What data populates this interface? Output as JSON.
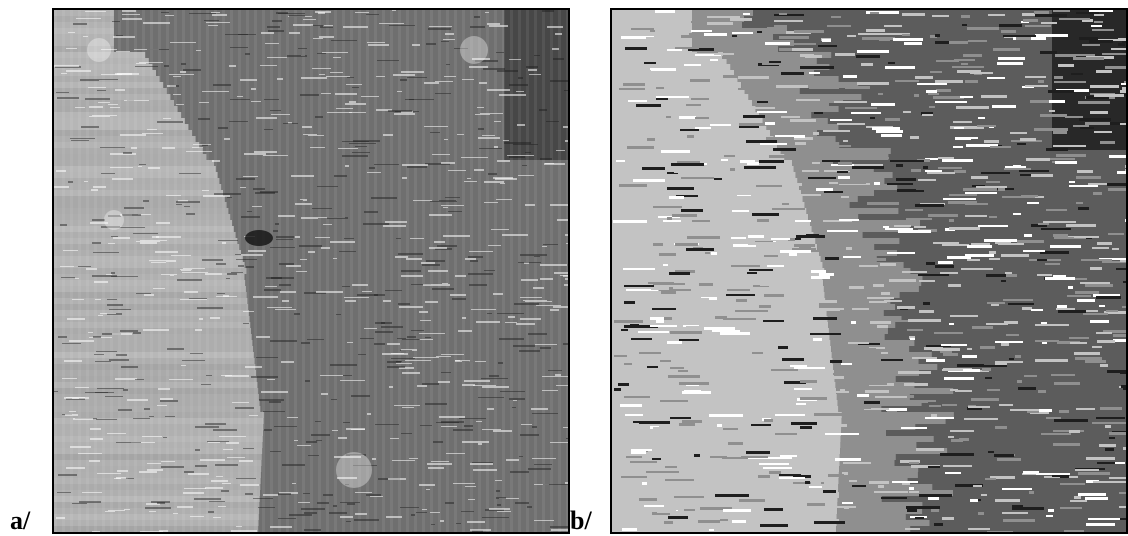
{
  "figure": {
    "panels": [
      {
        "label": "a/",
        "style": "continuous grayscale micrograph"
      },
      {
        "label": "b/",
        "style": "segmented into gray levels"
      }
    ],
    "colors": {
      "segment_levels": [
        "#1e1e1e",
        "#5c5c5c",
        "#8f8f8f",
        "#c3c3c3",
        "#ffffff"
      ],
      "frame": "#000000",
      "background": "#ffffff"
    }
  }
}
